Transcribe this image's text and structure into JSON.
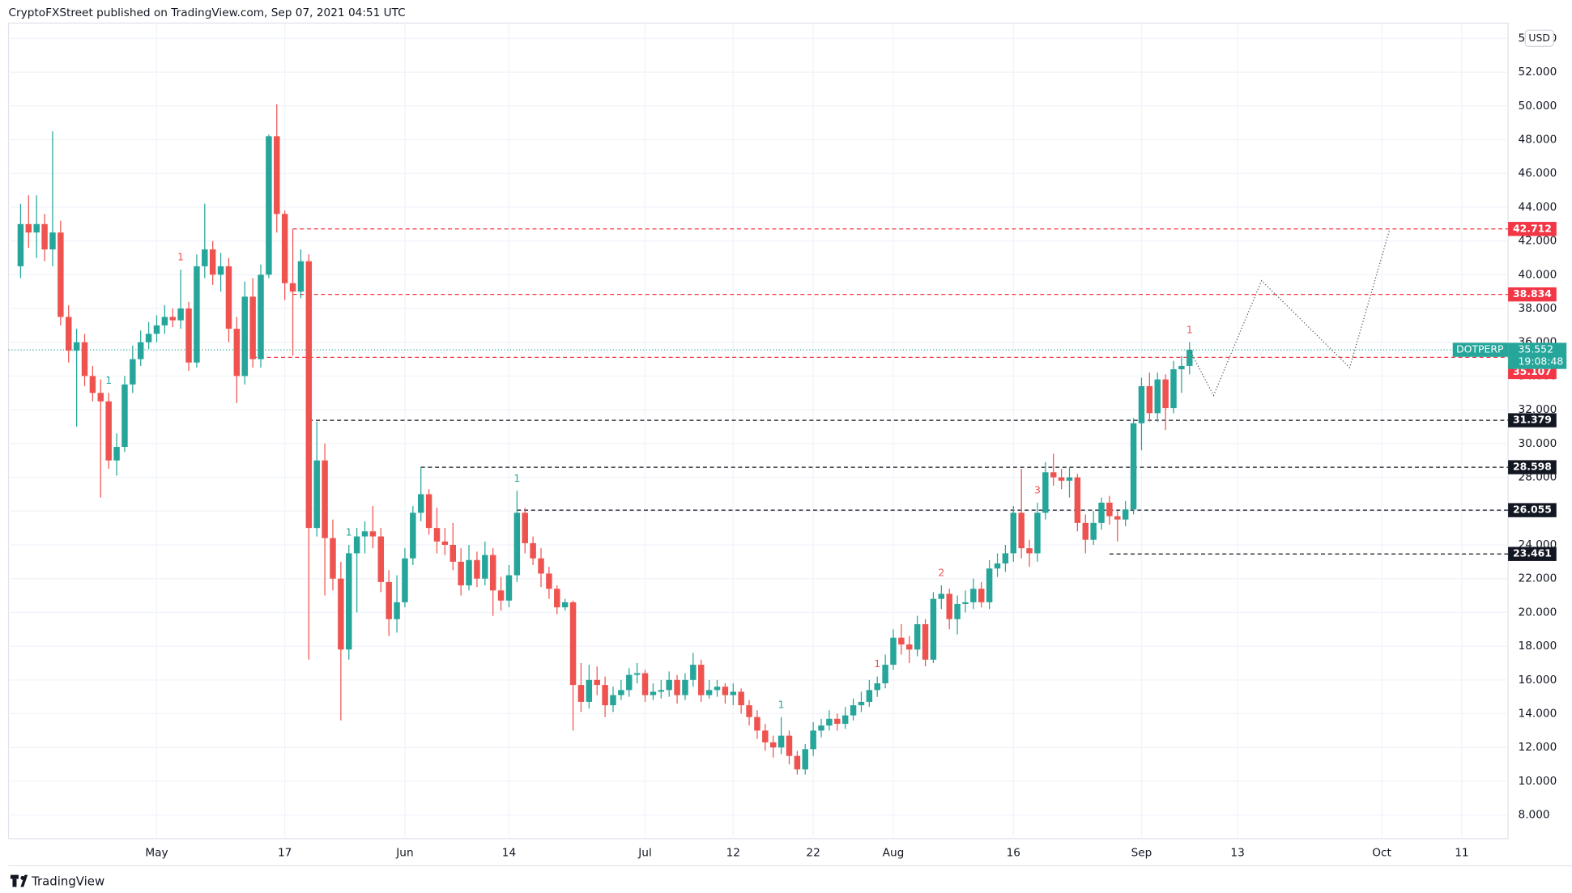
{
  "header": "CryptoFXStreet published on TradingView.com, Sep 07, 2021 04:51 UTC",
  "footer": "TradingView",
  "chart_data": {
    "type": "candlestick",
    "currency": "USD",
    "x": [
      "2021-04-14",
      "2021-04-15",
      "2021-04-16",
      "2021-04-17",
      "2021-04-18",
      "2021-04-19",
      "2021-04-20",
      "2021-04-21",
      "2021-04-22",
      "2021-04-23",
      "2021-04-24",
      "2021-04-25",
      "2021-04-26",
      "2021-04-27",
      "2021-04-28",
      "2021-04-29",
      "2021-04-30",
      "2021-05-01",
      "2021-05-02",
      "2021-05-03",
      "2021-05-04",
      "2021-05-05",
      "2021-05-06",
      "2021-05-07",
      "2021-05-08",
      "2021-05-09",
      "2021-05-10",
      "2021-05-11",
      "2021-05-12",
      "2021-05-13",
      "2021-05-14",
      "2021-05-15",
      "2021-05-16",
      "2021-05-17",
      "2021-05-18",
      "2021-05-19",
      "2021-05-20",
      "2021-05-21",
      "2021-05-22",
      "2021-05-23",
      "2021-05-24",
      "2021-05-25",
      "2021-05-26",
      "2021-05-27",
      "2021-05-28",
      "2021-05-29",
      "2021-05-30",
      "2021-05-31",
      "2021-06-01",
      "2021-06-02",
      "2021-06-03",
      "2021-06-04",
      "2021-06-05",
      "2021-06-06",
      "2021-06-07",
      "2021-06-08",
      "2021-06-09",
      "2021-06-10",
      "2021-06-11",
      "2021-06-12",
      "2021-06-13",
      "2021-06-14",
      "2021-06-15",
      "2021-06-16",
      "2021-06-17",
      "2021-06-18",
      "2021-06-19",
      "2021-06-20",
      "2021-06-21",
      "2021-06-22",
      "2021-06-23",
      "2021-06-24",
      "2021-06-25",
      "2021-06-26",
      "2021-06-27",
      "2021-06-28",
      "2021-06-29",
      "2021-06-30",
      "2021-07-01",
      "2021-07-02",
      "2021-07-03",
      "2021-07-04",
      "2021-07-05",
      "2021-07-06",
      "2021-07-07",
      "2021-07-08",
      "2021-07-09",
      "2021-07-10",
      "2021-07-11",
      "2021-07-12",
      "2021-07-13",
      "2021-07-14",
      "2021-07-15",
      "2021-07-16",
      "2021-07-17",
      "2021-07-18",
      "2021-07-19",
      "2021-07-20",
      "2021-07-21",
      "2021-07-22",
      "2021-07-23",
      "2021-07-24",
      "2021-07-25",
      "2021-07-26",
      "2021-07-27",
      "2021-07-28",
      "2021-07-29",
      "2021-07-30",
      "2021-07-31",
      "2021-08-01",
      "2021-08-02",
      "2021-08-03",
      "2021-08-04",
      "2021-08-05",
      "2021-08-06",
      "2021-08-07",
      "2021-08-08",
      "2021-08-09",
      "2021-08-10",
      "2021-08-11",
      "2021-08-12",
      "2021-08-13",
      "2021-08-14",
      "2021-08-15",
      "2021-08-16",
      "2021-08-17",
      "2021-08-18",
      "2021-08-19",
      "2021-08-20",
      "2021-08-21",
      "2021-08-22",
      "2021-08-23",
      "2021-08-24",
      "2021-08-25",
      "2021-08-26",
      "2021-08-27",
      "2021-08-28",
      "2021-08-29",
      "2021-08-30",
      "2021-08-31",
      "2021-09-01",
      "2021-09-02",
      "2021-09-03",
      "2021-09-04",
      "2021-09-05",
      "2021-09-06",
      "2021-09-07"
    ],
    "open": [
      40.5,
      43,
      42.5,
      43,
      41.5,
      42.5,
      37.5,
      35.5,
      36,
      34,
      33,
      32.5,
      29,
      29.8,
      33.5,
      35,
      36,
      36.5,
      37,
      37.5,
      37.3,
      38,
      34.8,
      40.5,
      41.5,
      40,
      40.5,
      36.8,
      34,
      38.7,
      35,
      40,
      48.2,
      43.6,
      39.5,
      39,
      40.8,
      25,
      29,
      24.4,
      22,
      17.8,
      23.5,
      24.5,
      24.8,
      24.5,
      21.8,
      19.6,
      20.6,
      23.2,
      25.9,
      27,
      25,
      24.2,
      24,
      23,
      21.6,
      23.1,
      22,
      23.4,
      21.3,
      20.7,
      22.2,
      25.9,
      24.1,
      23.2,
      22.3,
      21.4,
      20.3,
      20.6,
      15.7,
      14.7,
      16,
      15.7,
      14.5,
      15.1,
      15.4,
      16.3,
      16.4,
      15.1,
      15.3,
      15.4,
      16,
      15.1,
      16,
      16.9,
      15.1,
      15.4,
      15.6,
      15.1,
      15.3,
      14.5,
      13.8,
      13,
      12.3,
      12,
      12.7,
      11.5,
      10.7,
      11.9,
      13,
      13.3,
      13.7,
      13.4,
      13.9,
      14.5,
      14.7,
      15.4,
      15.8,
      16.9,
      18.5,
      18.1,
      17.8,
      19.3,
      17.2,
      20.8,
      21.1,
      19.6,
      20.5,
      20.6,
      21.4,
      20.6,
      22.6,
      22.9,
      23.5,
      25.9,
      23.8,
      23.5,
      25.9,
      28.3,
      28,
      27.8,
      28,
      25.3,
      24.3,
      25.3,
      26.5,
      25.7,
      25.5,
      26.1,
      31.2,
      33.4,
      31.8,
      33.8,
      32.1,
      34.4,
      34.6
    ],
    "high": [
      44.2,
      44.7,
      44.7,
      43.6,
      48.5,
      43.2,
      38.2,
      36.8,
      36.5,
      34.6,
      33.8,
      33,
      30.6,
      34,
      35.8,
      36.7,
      37.2,
      37.6,
      38.2,
      38,
      40.3,
      38.4,
      41.2,
      44.2,
      42,
      41.3,
      41,
      37.5,
      39.6,
      39.8,
      40.6,
      48.3,
      50.1,
      43.8,
      42.7,
      41.5,
      41.2,
      31.3,
      30,
      25.5,
      23,
      24,
      25,
      25.4,
      26.3,
      25,
      22.5,
      22.2,
      23.8,
      26.3,
      28.6,
      27.3,
      26.2,
      25,
      25.3,
      23.8,
      24,
      23.6,
      24.2,
      23.8,
      22.1,
      22.8,
      27.2,
      26.2,
      24.5,
      23.8,
      22.7,
      21.6,
      20.8,
      20.7,
      17,
      16.9,
      16.8,
      16.2,
      15.6,
      16,
      16.7,
      17,
      16.6,
      15.8,
      16,
      16.5,
      16.3,
      16.4,
      17.6,
      17.2,
      16,
      16,
      15.8,
      15.8,
      15.5,
      14.8,
      14.2,
      13.4,
      12.7,
      13.8,
      13,
      11.8,
      12.2,
      13.5,
      13.7,
      14.2,
      14,
      14.4,
      14.9,
      15.3,
      16,
      16.2,
      17.5,
      19,
      19.3,
      18.6,
      19.8,
      19.6,
      21.2,
      21.6,
      21.4,
      21,
      21.3,
      22,
      21.8,
      23.1,
      23.5,
      24,
      26.3,
      28.5,
      24.3,
      26.5,
      28.9,
      29.4,
      28.5,
      28.6,
      28.2,
      25.8,
      26,
      26.8,
      26.9,
      26,
      26.6,
      31.5,
      33.9,
      34.2,
      34.2,
      34.1,
      34.9,
      35.2,
      36
    ],
    "low": [
      39.8,
      41.6,
      41,
      40.8,
      40.5,
      37,
      34.8,
      31,
      33.4,
      32.5,
      26.8,
      28.5,
      28.1,
      29.5,
      33,
      34.6,
      35.6,
      36,
      36.5,
      36.9,
      36.8,
      34.3,
      34.5,
      39.8,
      39.4,
      39,
      36,
      32.4,
      33.5,
      34.5,
      34.5,
      39.8,
      42.5,
      38.5,
      35.2,
      38.6,
      17.2,
      24.5,
      21,
      21.3,
      13.6,
      17.2,
      20,
      23.5,
      23.8,
      21.2,
      18.6,
      18.8,
      20.3,
      22.8,
      25.4,
      24.6,
      23.5,
      23.4,
      22.5,
      21,
      21.3,
      21.5,
      21.6,
      19.8,
      20.1,
      20.3,
      21.8,
      23.5,
      22.8,
      21.5,
      20.8,
      19.9,
      20.1,
      13,
      14.1,
      14.3,
      15.1,
      13.8,
      14.1,
      14.8,
      15,
      15.8,
      14.7,
      14.8,
      14.9,
      15,
      14.6,
      14.8,
      15.6,
      14.7,
      14.9,
      15,
      14.6,
      14.5,
      14,
      13.3,
      12.5,
      11.8,
      11.4,
      11.6,
      11,
      10.4,
      10.4,
      11.5,
      12.6,
      13,
      13,
      13.1,
      13.6,
      14.1,
      14.4,
      15,
      15.5,
      16.6,
      17.5,
      17,
      17.4,
      16.8,
      17,
      20.2,
      19,
      18.7,
      20,
      20.2,
      20.3,
      20.2,
      22.1,
      22.4,
      23,
      23.2,
      22.7,
      23,
      25.5,
      27.5,
      27.3,
      26.8,
      24.8,
      23.5,
      24,
      24.9,
      25.2,
      24.2,
      25.1,
      25.8,
      29.6,
      31.3,
      31.3,
      30.8,
      31.8,
      33,
      34.1
    ],
    "close": [
      43,
      42.5,
      43,
      41.5,
      42.5,
      37.5,
      35.5,
      36,
      34,
      33,
      32.5,
      29,
      29.8,
      33.5,
      35,
      36,
      36.5,
      37,
      37.5,
      37.3,
      38,
      34.8,
      40.5,
      41.5,
      40,
      40.5,
      36.8,
      34,
      38.7,
      35,
      40,
      48.2,
      43.6,
      39.5,
      39,
      40.8,
      25,
      29,
      24.4,
      22,
      17.8,
      23.5,
      24.5,
      24.8,
      24.5,
      21.8,
      19.6,
      20.6,
      23.2,
      25.9,
      27,
      25,
      24.2,
      24,
      23,
      21.6,
      23.1,
      22,
      23.4,
      21.3,
      20.7,
      22.2,
      25.9,
      24.1,
      23.2,
      22.3,
      21.4,
      20.3,
      20.6,
      15.7,
      14.7,
      16,
      15.7,
      14.5,
      15.1,
      15.4,
      16.3,
      16.4,
      15.1,
      15.3,
      15.4,
      16,
      15.1,
      16,
      16.9,
      15.1,
      15.4,
      15.6,
      15.1,
      15.3,
      14.5,
      13.8,
      13,
      12.3,
      12,
      12.7,
      11.5,
      10.7,
      11.9,
      13,
      13.3,
      13.7,
      13.4,
      13.9,
      14.5,
      14.7,
      15.4,
      15.8,
      16.9,
      18.5,
      18.1,
      17.8,
      19.3,
      17.2,
      20.8,
      21.1,
      19.6,
      20.5,
      20.6,
      21.4,
      20.6,
      22.6,
      22.9,
      23.5,
      25.9,
      23.8,
      23.5,
      25.9,
      28.3,
      28,
      27.8,
      28,
      25.3,
      24.3,
      25.3,
      26.5,
      25.7,
      25.5,
      26.1,
      31.2,
      33.4,
      31.8,
      33.8,
      32.1,
      34.4,
      34.6,
      35.552
    ],
    "up_color": "#26a69a",
    "down_color": "#ef5350",
    "ylim": [
      6.6,
      54.9
    ],
    "yticks": [
      {
        "value": 8,
        "label": "8.000"
      },
      {
        "value": 10,
        "label": "10.000"
      },
      {
        "value": 12,
        "label": "12.000"
      },
      {
        "value": 14,
        "label": "14.000"
      },
      {
        "value": 16,
        "label": "16.000"
      },
      {
        "value": 18,
        "label": "18.000"
      },
      {
        "value": 20,
        "label": "20.000"
      },
      {
        "value": 22,
        "label": "22.000"
      },
      {
        "value": 24,
        "label": "24.000"
      },
      {
        "value": 26,
        "label": "26.000"
      },
      {
        "value": 28,
        "label": "28.000"
      },
      {
        "value": 30,
        "label": "30.000"
      },
      {
        "value": 32,
        "label": "32.000"
      },
      {
        "value": 34,
        "label": "34.000"
      },
      {
        "value": 36,
        "label": "36.000"
      },
      {
        "value": 38,
        "label": "38.000"
      },
      {
        "value": 40,
        "label": "40.000"
      },
      {
        "value": 42,
        "label": "42.000"
      },
      {
        "value": 44,
        "label": "44.000"
      },
      {
        "value": 46,
        "label": "46.000"
      },
      {
        "value": 48,
        "label": "48.000"
      },
      {
        "value": 50,
        "label": "50.000"
      },
      {
        "value": 52,
        "label": "52.000"
      },
      {
        "value": 54,
        "label": "54.000"
      }
    ],
    "xticks": [
      {
        "value": "2021-05-01",
        "label": "May"
      },
      {
        "value": "2021-05-17",
        "label": "17"
      },
      {
        "value": "2021-06-01",
        "label": "Jun"
      },
      {
        "value": "2021-06-14",
        "label": "14"
      },
      {
        "value": "2021-07-01",
        "label": "Jul"
      },
      {
        "value": "2021-07-12",
        "label": "12"
      },
      {
        "value": "2021-07-22",
        "label": "22"
      },
      {
        "value": "2021-08-01",
        "label": "Aug"
      },
      {
        "value": "2021-08-16",
        "label": "16"
      },
      {
        "value": "2021-09-01",
        "label": "Sep"
      },
      {
        "value": "2021-09-13",
        "label": "13"
      },
      {
        "value": "2021-10-01",
        "label": "Oct"
      },
      {
        "value": "2021-10-11",
        "label": "11"
      }
    ],
    "grid": true,
    "levels": [
      {
        "value": 42.712,
        "start": "2021-05-18",
        "color": "#f23645"
      },
      {
        "value": 38.834,
        "start": "2021-05-18",
        "color": "#f23645"
      },
      {
        "value": 35.107,
        "start": "2021-05-13",
        "color": "#f23645"
      },
      {
        "value": 31.379,
        "start": "2021-05-20",
        "color": "#131722"
      },
      {
        "value": 28.598,
        "start": "2021-06-03",
        "color": "#131722"
      },
      {
        "value": 26.055,
        "start": "2021-06-15",
        "color": "#131722"
      },
      {
        "value": 23.461,
        "start": "2021-08-28",
        "color": "#131722"
      }
    ],
    "projection": {
      "x": [
        "2021-09-07",
        "2021-09-10",
        "2021-09-16",
        "2021-09-27",
        "2021-10-02"
      ],
      "values": [
        35.552,
        32.85,
        39.65,
        34.5,
        42.7
      ],
      "color": "#555555"
    },
    "last": {
      "symbol": "DOTPERP",
      "price": 35.552,
      "countdown": "19:08:48",
      "color": "#26a69a"
    },
    "annotations": [
      {
        "text": "1",
        "x": "2021-04-25",
        "color": "#26a69a"
      },
      {
        "text": "1",
        "x": "2021-05-04",
        "color": "#ef5350"
      },
      {
        "text": "1",
        "x": "2021-05-25",
        "color": "#26a69a"
      },
      {
        "text": "1",
        "x": "2021-06-15",
        "color": "#26a69a"
      },
      {
        "text": "1",
        "x": "2021-07-18",
        "color": "#26a69a"
      },
      {
        "text": "1",
        "x": "2021-07-30",
        "color": "#ef5350"
      },
      {
        "text": "2",
        "x": "2021-08-07",
        "color": "#ef5350"
      },
      {
        "text": "3",
        "x": "2021-08-19",
        "color": "#ef5350"
      },
      {
        "text": "1",
        "x": "2021-09-07",
        "color": "#ef5350"
      }
    ]
  }
}
